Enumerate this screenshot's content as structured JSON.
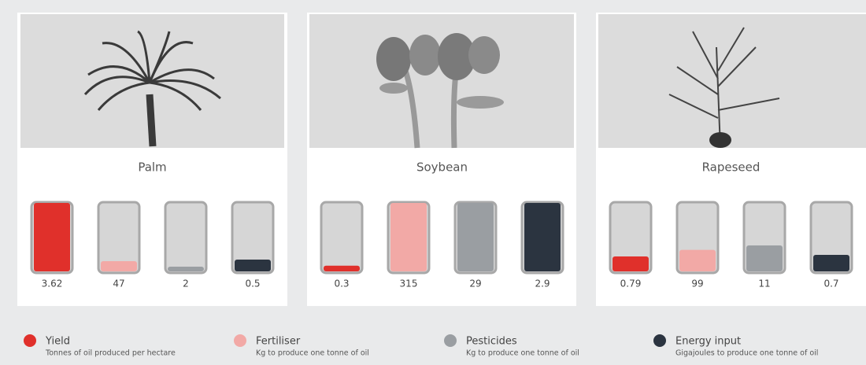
{
  "chart_data": {
    "type": "tube",
    "categories": [
      "Palm",
      "Soybean",
      "Rapeseed"
    ],
    "series": [
      {
        "name": "Yield",
        "description": "Tonnes of oil produced per hectare",
        "color": "#e0302b",
        "values": [
          3.62,
          0.3,
          0.79
        ]
      },
      {
        "name": "Fertiliser",
        "description": "Kg to produce one tonne of oil",
        "color": "#f2a9a6",
        "values": [
          47,
          315,
          99
        ]
      },
      {
        "name": "Pesticides",
        "description": "Kg to produce one tonne of oil",
        "color": "#9a9ea2",
        "values": [
          2,
          29,
          11
        ]
      },
      {
        "name": "Energy input",
        "description": "Gigajoules to produce one tonne of oil",
        "color": "#2b3440",
        "values": [
          0.5,
          2.9,
          0.7
        ]
      }
    ]
  }
}
